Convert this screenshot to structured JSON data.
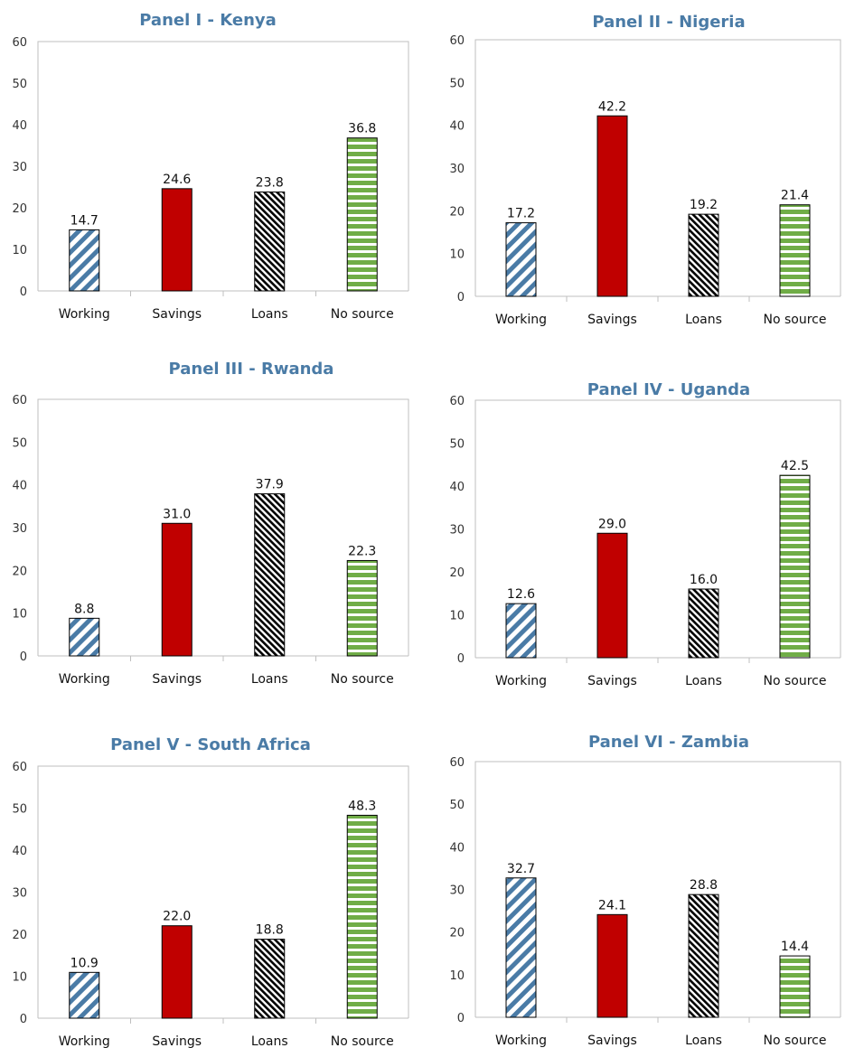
{
  "colors": {
    "title": "#4a7ba6",
    "working": "#4a7ba6",
    "savings": "#c00000",
    "loans": "#000000",
    "no_source": "#70ad47",
    "axis": "#bfbfbf"
  },
  "chart_data": [
    {
      "type": "bar",
      "title": "Panel I - Kenya",
      "categories": [
        "Working",
        "Savings",
        "Loans",
        "No source"
      ],
      "values": [
        14.7,
        24.6,
        23.8,
        36.8
      ],
      "labels": [
        "14.7",
        "24.6",
        "23.8",
        "36.8"
      ],
      "yticks": [
        "0",
        "10",
        "20",
        "30",
        "40",
        "50",
        "60"
      ],
      "ylim": [
        0,
        60
      ],
      "grid": false
    },
    {
      "type": "bar",
      "title": "Panel II - Nigeria",
      "categories": [
        "Working",
        "Savings",
        "Loans",
        "No source"
      ],
      "values": [
        17.2,
        42.2,
        19.2,
        21.4
      ],
      "labels": [
        "17.2",
        "42.2",
        "19.2",
        "21.4"
      ],
      "yticks": [
        "0",
        "10",
        "20",
        "30",
        "40",
        "50",
        "60"
      ],
      "ylim": [
        0,
        60
      ],
      "grid": false
    },
    {
      "type": "bar",
      "title": "Panel III - Rwanda",
      "categories": [
        "Working",
        "Savings",
        "Loans",
        "No source"
      ],
      "values": [
        8.8,
        31.0,
        37.9,
        22.3
      ],
      "labels": [
        "8.8",
        "31.0",
        "37.9",
        "22.3"
      ],
      "yticks": [
        "0",
        "10",
        "20",
        "30",
        "40",
        "50",
        "60"
      ],
      "ylim": [
        0,
        60
      ],
      "grid": false
    },
    {
      "type": "bar",
      "title": "Panel IV - Uganda",
      "categories": [
        "Working",
        "Savings",
        "Loans",
        "No source"
      ],
      "values": [
        12.6,
        29.0,
        16.0,
        42.5
      ],
      "labels": [
        "12.6",
        "29.0",
        "16.0",
        "42.5"
      ],
      "yticks": [
        "0",
        "10",
        "20",
        "30",
        "40",
        "50",
        "60"
      ],
      "ylim": [
        0,
        60
      ],
      "grid": false
    },
    {
      "type": "bar",
      "title": "Panel V - South Africa",
      "categories": [
        "Working",
        "Savings",
        "Loans",
        "No source"
      ],
      "values": [
        10.9,
        22.0,
        18.8,
        48.3
      ],
      "labels": [
        "10.9",
        "22.0",
        "18.8",
        "48.3"
      ],
      "yticks": [
        "0",
        "10",
        "20",
        "30",
        "40",
        "50",
        "60"
      ],
      "ylim": [
        0,
        60
      ],
      "grid": false
    },
    {
      "type": "bar",
      "title": "Panel VI - Zambia",
      "categories": [
        "Working",
        "Savings",
        "Loans",
        "No source"
      ],
      "values": [
        32.7,
        24.1,
        28.8,
        14.4
      ],
      "labels": [
        "32.7",
        "24.1",
        "28.8",
        "14.4"
      ],
      "yticks": [
        "0",
        "10",
        "20",
        "30",
        "40",
        "50",
        "60"
      ],
      "ylim": [
        0,
        60
      ],
      "grid": false
    }
  ]
}
